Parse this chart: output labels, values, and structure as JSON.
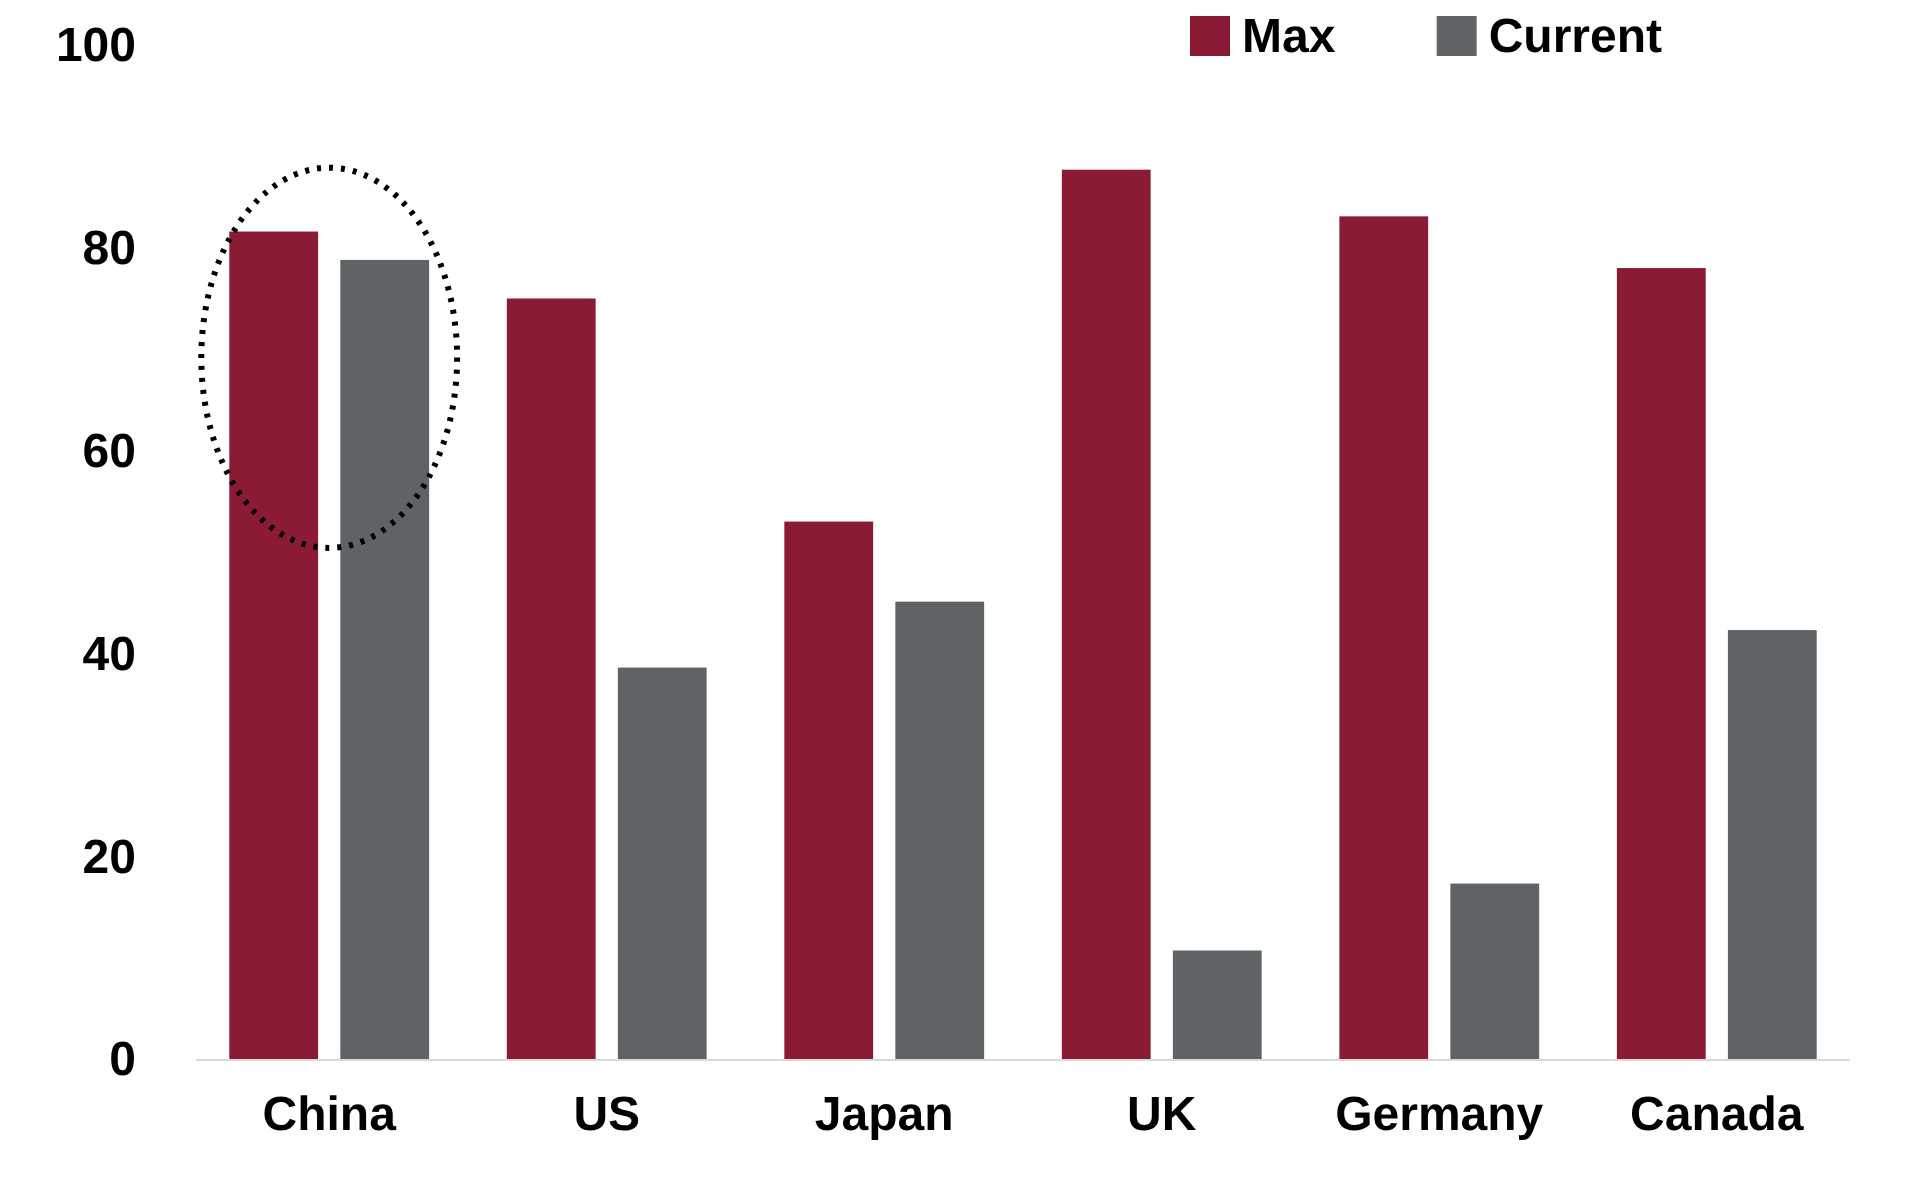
{
  "chart_data": {
    "type": "bar",
    "categories": [
      "China",
      "US",
      "Japan",
      "UK",
      "Germany",
      "Canada"
    ],
    "series": [
      {
        "name": "Max",
        "color": "#8b1a35",
        "values": [
          81.7,
          75.1,
          53.1,
          87.8,
          83.2,
          78.1
        ]
      },
      {
        "name": "Current",
        "color": "#5f6366",
        "values": [
          78.9,
          38.7,
          45.2,
          10.8,
          17.4,
          42.4
        ]
      }
    ],
    "ylim": [
      0,
      100
    ],
    "yticks": [
      0,
      20,
      40,
      60,
      80,
      100
    ],
    "grid": false,
    "legend": "top right"
  }
}
